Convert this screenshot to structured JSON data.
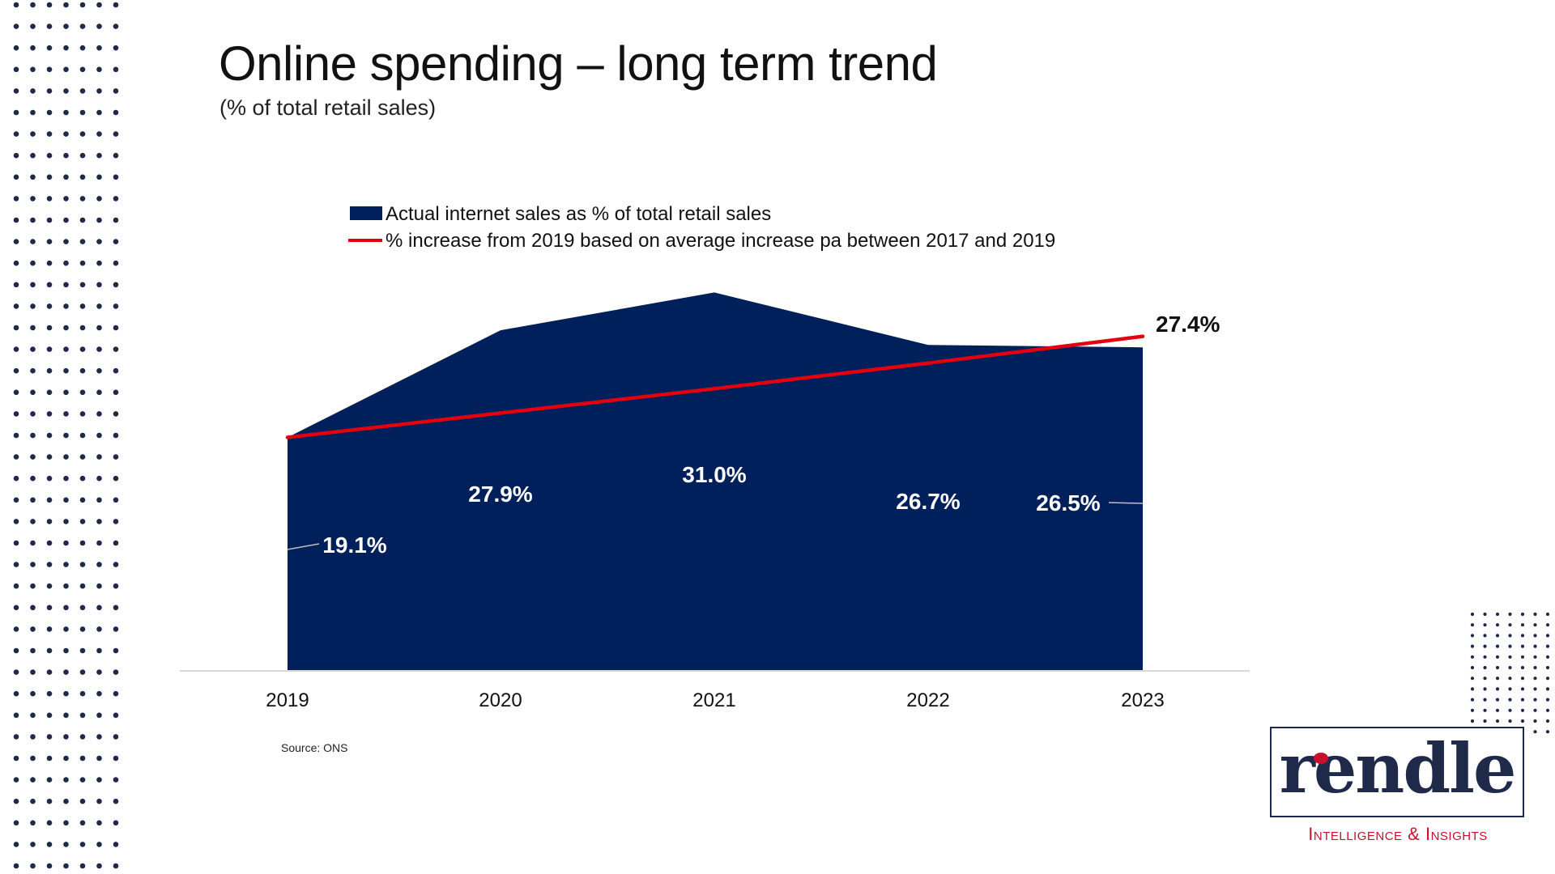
{
  "slide": {
    "title": "Online spending – long term trend",
    "subtitle": "(% of total retail sales)",
    "source": "Source: ONS"
  },
  "chart_data": {
    "type": "area",
    "title": "Online spending – long term trend",
    "subtitle": "(% of total retail sales)",
    "categories": [
      "2019",
      "2020",
      "2021",
      "2022",
      "2023"
    ],
    "series": [
      {
        "name": "Actual internet sales as % of total retail sales",
        "type": "area",
        "color": "#00205b",
        "values": [
          19.1,
          27.9,
          31.0,
          26.7,
          26.5
        ],
        "labels": [
          "19.1%",
          "27.9%",
          "31.0%",
          "26.7%",
          "26.5%"
        ]
      },
      {
        "name": "% increase from 2019  based on average increase pa between 2017 and  2019",
        "type": "line",
        "color": "#e3000f",
        "values": [
          19.1,
          21.1,
          23.1,
          25.2,
          27.4
        ],
        "end_label": "27.4%"
      }
    ],
    "ylim": [
      0,
      32
    ],
    "xlabel": "",
    "ylabel": "",
    "grid": false,
    "legend_position": "top"
  },
  "branding": {
    "logo_text": "rendle",
    "tagline": "Intelligence & Insights",
    "navy": "#1f2a4a",
    "red": "#c8102e"
  },
  "colors": {
    "area": "#00205b",
    "trend_line": "#e3000f",
    "dots": "#1f2a4a",
    "axis": "#d9d9d9"
  }
}
